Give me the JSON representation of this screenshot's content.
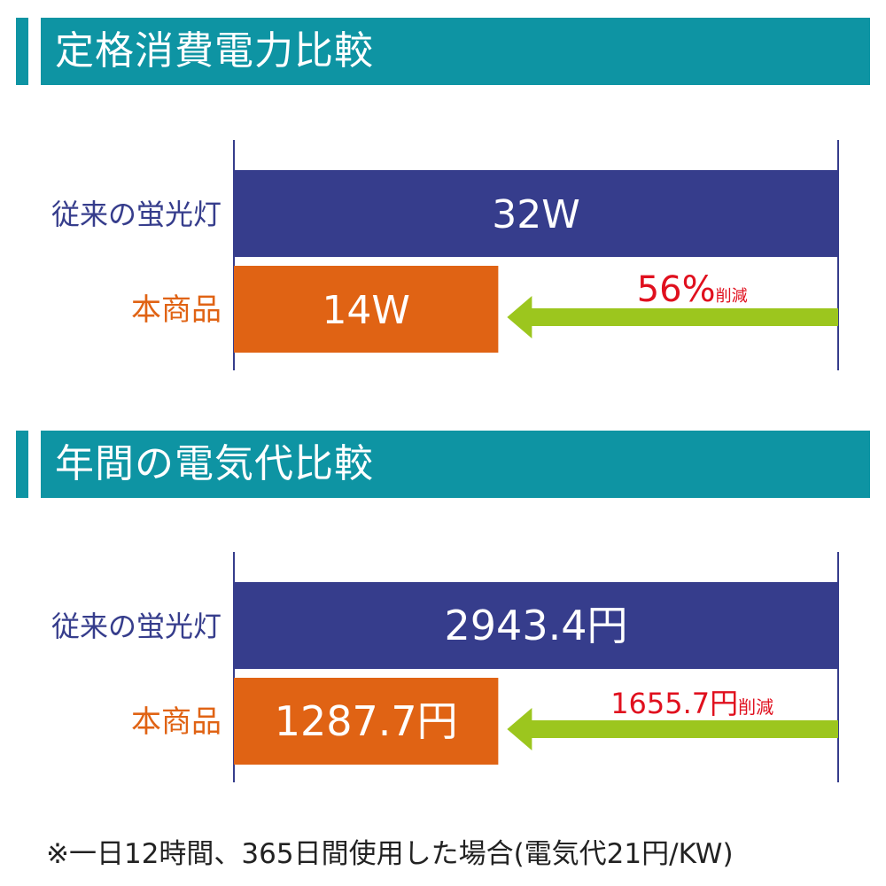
{
  "colors": {
    "header": "#0e94a3",
    "conventional": "#363d8c",
    "product": "#e06314",
    "arrow": "#9cc61e",
    "reduction_text": "#e0101e",
    "axis": "#363d8c"
  },
  "sections": [
    {
      "title": "定格消費電力比較"
    },
    {
      "title": "年間の電気代比較"
    }
  ],
  "chart_data": [
    {
      "type": "bar",
      "orientation": "horizontal",
      "categories": [
        "従来の蛍光灯",
        "本商品"
      ],
      "values": [
        32,
        14
      ],
      "unit": "W",
      "value_labels": [
        "32W",
        "14W"
      ],
      "xlim": [
        0,
        32
      ],
      "reduction": {
        "percent": 56,
        "label_value": "56%",
        "label_suffix": "削減"
      }
    },
    {
      "type": "bar",
      "orientation": "horizontal",
      "categories": [
        "従来の蛍光灯",
        "本商品"
      ],
      "values": [
        2943.4,
        1287.7
      ],
      "unit": "円",
      "value_labels": [
        "2943.4円",
        "1287.7円"
      ],
      "xlim": [
        0,
        2943.4
      ],
      "reduction": {
        "amount": 1655.7,
        "label_value": "1655.7円",
        "label_suffix": "削減"
      }
    }
  ],
  "footnote": "※一日12時間、365日間使用した場合(電気代21円/KW)"
}
